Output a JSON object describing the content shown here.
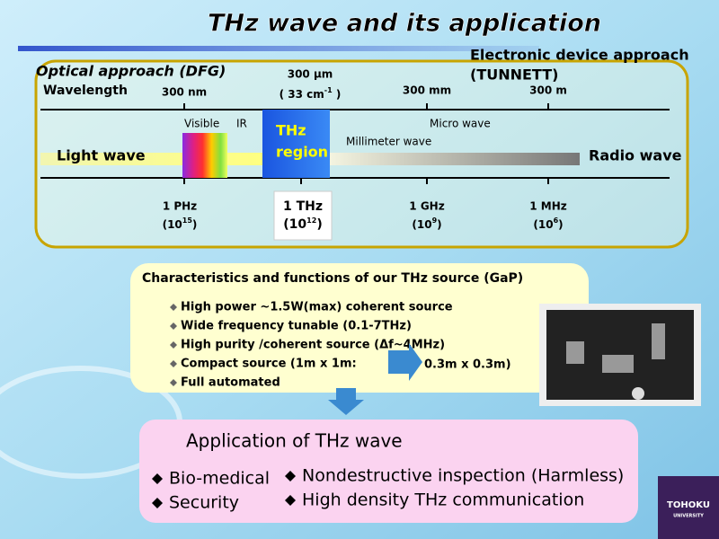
{
  "title": "THz wave and its application",
  "spectrum": {
    "optical_approach": "Optical approach (DFG)",
    "electronic_approach": [
      "Electronic device approach",
      "(TUNNETT)"
    ],
    "wavelength_label": "Wavelength",
    "wavelengths": [
      "300 nm",
      "300 µm",
      "300 mm",
      "300 m"
    ],
    "wavenumber": {
      "prefix": "( 33 cm",
      "exp": "-1",
      "suffix": " )"
    },
    "visible": "Visible",
    "ir": "IR",
    "thz_region": [
      "THz",
      "region"
    ],
    "micro_wave": "Micro wave",
    "millimeter_wave": "Millimeter wave",
    "light_wave": "Light wave",
    "radio_wave": "Radio wave",
    "frequencies": [
      {
        "label": "1 PHz",
        "prefix": "(10",
        "exp": "15",
        "suffix": ")"
      },
      {
        "label": "1 THz",
        "prefix": "(10",
        "exp": "12",
        "suffix": ")"
      },
      {
        "label": "1 GHz",
        "prefix": "(10",
        "exp": "9",
        "suffix": ")"
      },
      {
        "label": "1 MHz",
        "prefix": "(10",
        "exp": "6",
        "suffix": ")"
      }
    ]
  },
  "characteristics": {
    "heading": "Characteristics and functions of  our THz source (GaP)",
    "items": [
      "High power ~1.5W(max) coherent source",
      "Wide frequency tunable  (0.1-7THz)",
      "High purity /coherent source (Δf~4MHz)",
      "Compact source (1m x 1m:",
      "Full automated"
    ],
    "compact_target": "0.3m x 0.3m)"
  },
  "application": {
    "heading": "Application of THz wave",
    "items": [
      "Bio-medical",
      "Security",
      "Nondestructive inspection (Harmless)",
      "High density THz communication"
    ]
  },
  "logo": [
    "TOHOKU",
    "UNIVERSITY"
  ]
}
